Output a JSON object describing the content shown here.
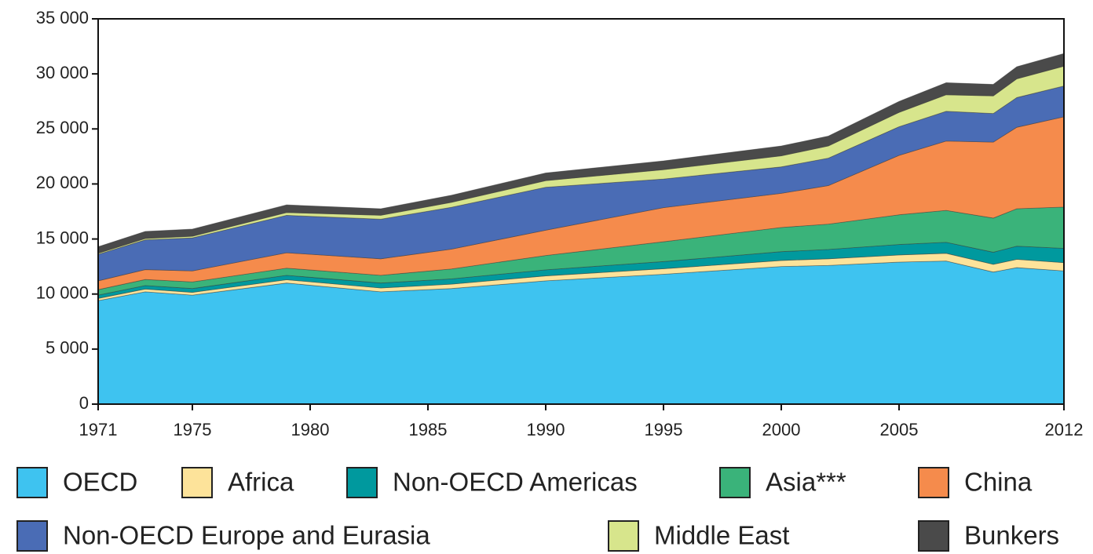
{
  "chart_data": {
    "type": "stacked-area",
    "x": [
      1971,
      1973,
      1975,
      1979,
      1983,
      1986,
      1990,
      1995,
      2000,
      2002,
      2005,
      2007,
      2009,
      2010,
      2012
    ],
    "xlim": [
      1971,
      2012
    ],
    "xticks": [
      1971,
      1975,
      1980,
      1985,
      1990,
      1995,
      2000,
      2005,
      2012
    ],
    "ylim": [
      0,
      35000
    ],
    "yticks": [
      0,
      {
        "value": 5000,
        "label": "5 000"
      },
      {
        "value": 10000,
        "label": "10 000"
      },
      {
        "value": 15000,
        "label": "15 000"
      },
      {
        "value": 20000,
        "label": "20 000"
      },
      {
        "value": 25000,
        "label": "25 000"
      },
      {
        "value": 30000,
        "label": "30 000"
      },
      {
        "value": 35000,
        "label": "35 000"
      }
    ],
    "series": [
      {
        "name": "OECD",
        "color": "#3ec3f0",
        "values": [
          9400,
          10200,
          9900,
          11000,
          10200,
          10500,
          11200,
          11800,
          12500,
          12600,
          12900,
          13000,
          12000,
          12400,
          12100
        ]
      },
      {
        "name": "Africa",
        "color": "#fde39a",
        "values": [
          200,
          250,
          250,
          300,
          350,
          400,
          450,
          500,
          550,
          600,
          650,
          700,
          700,
          750,
          750
        ]
      },
      {
        "name": "Non-OECD Americas",
        "color": "#00999e",
        "values": [
          300,
          320,
          350,
          400,
          450,
          480,
          550,
          650,
          800,
          850,
          950,
          1000,
          1100,
          1200,
          1300
        ]
      },
      {
        "name": "Asia***",
        "color": "#3ab37a",
        "values": [
          500,
          550,
          600,
          650,
          700,
          900,
          1300,
          1800,
          2200,
          2300,
          2700,
          2900,
          3100,
          3400,
          3750
        ]
      },
      {
        "name": "China",
        "color": "#f58b4c",
        "values": [
          800,
          900,
          1000,
          1400,
          1500,
          1800,
          2300,
          3100,
          3100,
          3500,
          5400,
          6300,
          6900,
          7400,
          8200
        ]
      },
      {
        "name": "Non-OECD Europe and Eurasia",
        "color": "#4a6cb5",
        "values": [
          2400,
          2700,
          3000,
          3400,
          3600,
          3800,
          3900,
          2600,
          2400,
          2500,
          2600,
          2700,
          2600,
          2700,
          2800
        ]
      },
      {
        "name": "Middle East",
        "color": "#d7e58c",
        "values": [
          100,
          120,
          150,
          250,
          350,
          450,
          600,
          850,
          1000,
          1100,
          1300,
          1500,
          1600,
          1700,
          1800
        ]
      },
      {
        "name": "Bunkers",
        "color": "#4a4a4a",
        "values": [
          600,
          650,
          650,
          700,
          600,
          650,
          700,
          800,
          900,
          900,
          1000,
          1100,
          1050,
          1100,
          1150
        ]
      }
    ]
  }
}
